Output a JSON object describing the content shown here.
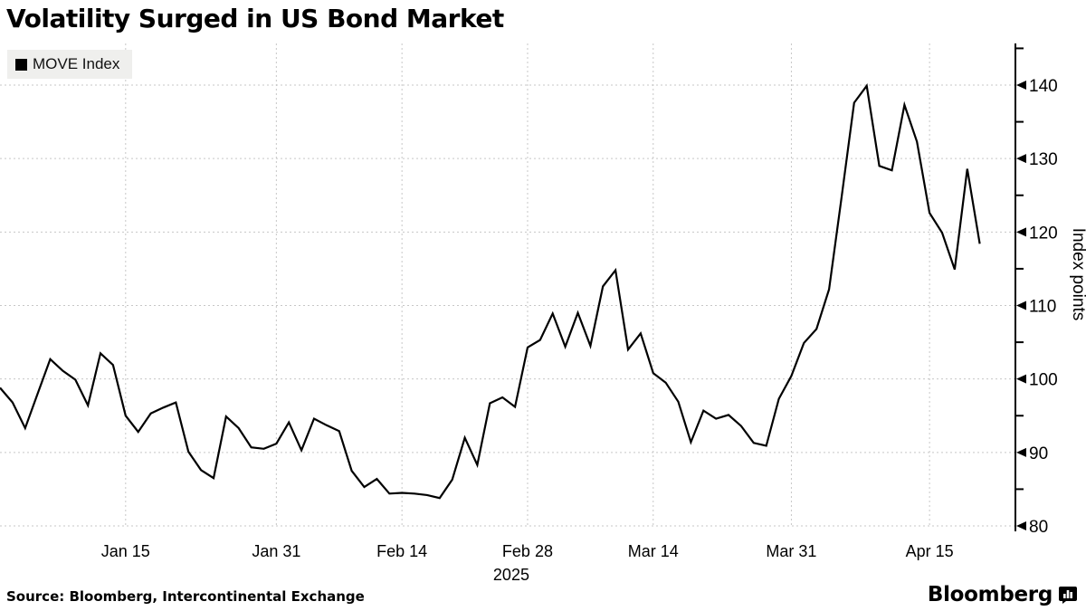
{
  "title": "Volatility Surged in US Bond Market",
  "legend": {
    "label": "MOVE Index",
    "swatch_color": "#000000"
  },
  "source": "Source: Bloomberg, Intercontinental Exchange",
  "branding": {
    "logo_text": "Bloomberg",
    "logo_icon": "bloomberg-terminal-icon"
  },
  "chart_data": {
    "type": "line",
    "title": "Volatility Surged in US Bond Market",
    "series_name": "MOVE Index",
    "xlabel": "",
    "ylabel": "Index points",
    "year_label": "2025",
    "year_label_under": "Feb 28",
    "ylim": [
      78,
      146
    ],
    "y_ticks": [
      80,
      90,
      100,
      110,
      120,
      130,
      140
    ],
    "y_minor_ticks": [
      85,
      95,
      105,
      115,
      125,
      135,
      145
    ],
    "x_ticks": [
      "Jan 15",
      "Jan 31",
      "Feb 14",
      "Feb 28",
      "Mar 14",
      "Mar 31",
      "Apr 15"
    ],
    "grid": true,
    "legend_position": "top-left",
    "axis_side": "right",
    "line_color": "#000000",
    "grid_color": "#c7c7c7",
    "axis_color": "#000000",
    "dates": [
      "Dec 31",
      "Jan 2",
      "Jan 3",
      "Jan 6",
      "Jan 7",
      "Jan 8",
      "Jan 9",
      "Jan 10",
      "Jan 13",
      "Jan 14",
      "Jan 15",
      "Jan 16",
      "Jan 17",
      "Jan 20",
      "Jan 21",
      "Jan 22",
      "Jan 23",
      "Jan 24",
      "Jan 27",
      "Jan 28",
      "Jan 29",
      "Jan 30",
      "Jan 31",
      "Feb 3",
      "Feb 4",
      "Feb 5",
      "Feb 6",
      "Feb 7",
      "Feb 10",
      "Feb 11",
      "Feb 12",
      "Feb 13",
      "Feb 14",
      "Feb 17",
      "Feb 18",
      "Feb 19",
      "Feb 20",
      "Feb 21",
      "Feb 24",
      "Feb 25",
      "Feb 26",
      "Feb 27",
      "Feb 28",
      "Mar 3",
      "Mar 4",
      "Mar 5",
      "Mar 6",
      "Mar 7",
      "Mar 10",
      "Mar 11",
      "Mar 12",
      "Mar 13",
      "Mar 14",
      "Mar 17",
      "Mar 18",
      "Mar 19",
      "Mar 20",
      "Mar 21",
      "Mar 24",
      "Mar 25",
      "Mar 26",
      "Mar 27",
      "Mar 28",
      "Mar 31",
      "Apr 1",
      "Apr 2",
      "Apr 3",
      "Apr 4",
      "Apr 7",
      "Apr 8",
      "Apr 9",
      "Apr 10",
      "Apr 11",
      "Apr 14",
      "Apr 15",
      "Apr 16",
      "Apr 17",
      "Apr 21",
      "Apr 22"
    ],
    "values": [
      98.8,
      96.8,
      93.3,
      98.0,
      102.7,
      101.1,
      99.9,
      96.4,
      103.5,
      101.9,
      95.0,
      92.8,
      95.3,
      96.1,
      96.8,
      90.1,
      87.6,
      86.5,
      94.9,
      93.3,
      90.7,
      90.5,
      91.2,
      94.1,
      90.3,
      94.6,
      93.7,
      92.9,
      87.5,
      85.3,
      86.4,
      84.4,
      84.5,
      84.4,
      84.2,
      83.8,
      86.3,
      92.0,
      88.3,
      96.7,
      97.5,
      96.2,
      104.3,
      105.3,
      108.9,
      104.4,
      109.0,
      104.5,
      112.6,
      114.8,
      104.0,
      106.2,
      100.8,
      99.5,
      96.9,
      91.4,
      95.7,
      94.6,
      95.1,
      93.6,
      91.3,
      90.9,
      97.3,
      100.4,
      104.9,
      106.8,
      112.2,
      124.8,
      137.6,
      139.9,
      129.0,
      128.4,
      137.3,
      132.3,
      122.6,
      119.9,
      114.9,
      128.6,
      118.4
    ]
  }
}
